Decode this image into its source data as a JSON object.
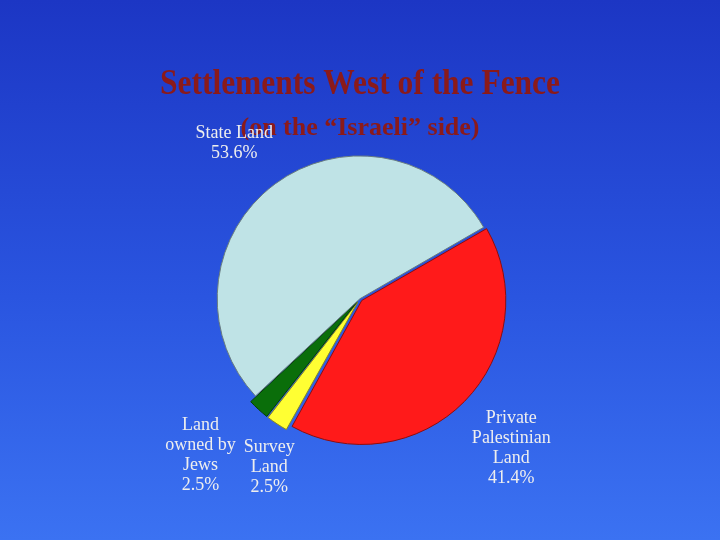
{
  "chart_data": {
    "type": "pie",
    "title": "Settlements West of the Fence",
    "subtitle": "(on the “Israeli” side)",
    "categories": [
      "Private Palestinian Land",
      "Survey Land",
      "Land owned by Jews",
      "State Land"
    ],
    "values": [
      41.4,
      2.5,
      2.5,
      53.6
    ],
    "value_labels": [
      "41.4%",
      "2.5%",
      "2.5%",
      "53.6%"
    ],
    "colors": [
      "#ff1a1a",
      "#ffff33",
      "#0a6e0a",
      "#bfe3e6"
    ],
    "data_labels": true
  }
}
